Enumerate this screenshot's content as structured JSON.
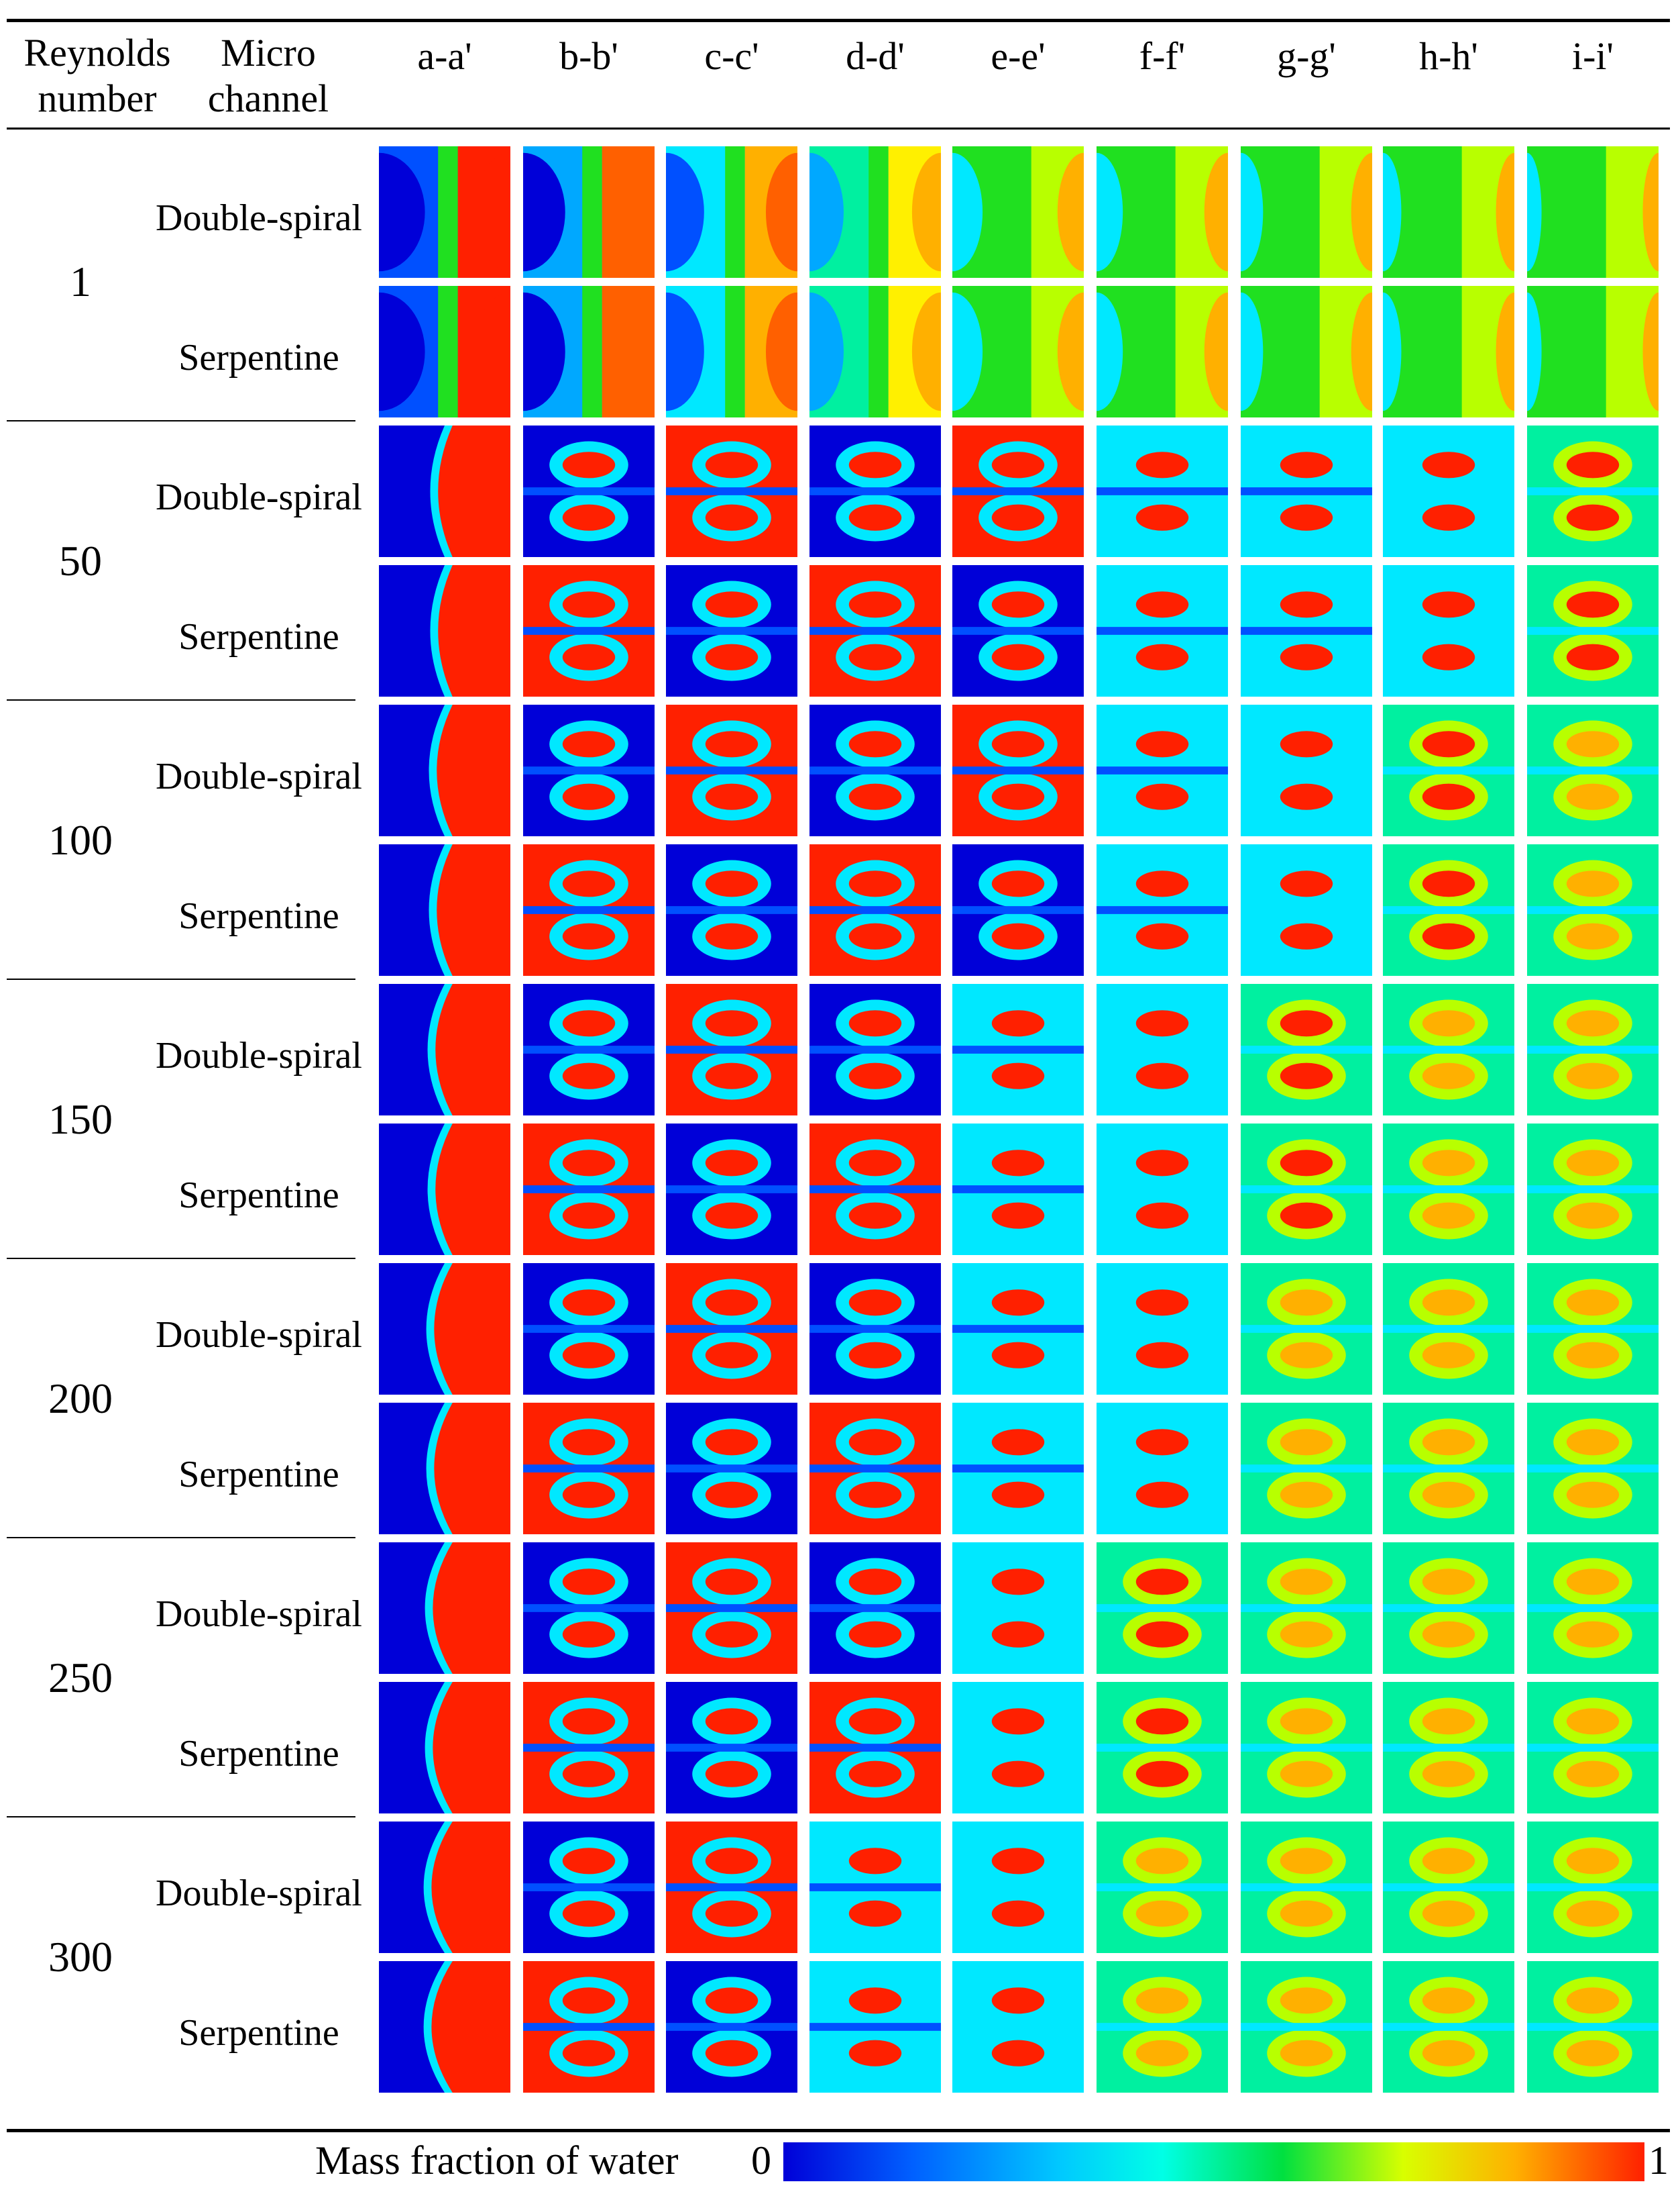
{
  "header": {
    "reynolds_label": "Reynolds number",
    "channel_label": "Micro channel",
    "sections": [
      "a-a'",
      "b-b'",
      "c-c'",
      "d-d'",
      "e-e'",
      "f-f'",
      "g-g'",
      "h-h'",
      "i-i'"
    ]
  },
  "rows": [
    {
      "re": "1",
      "channels": [
        "Double-spiral",
        "Serpentine"
      ]
    },
    {
      "re": "50",
      "channels": [
        "Double-spiral",
        "Serpentine"
      ]
    },
    {
      "re": "100",
      "channels": [
        "Double-spiral",
        "Serpentine"
      ]
    },
    {
      "re": "150",
      "channels": [
        "Double-spiral",
        "Serpentine"
      ]
    },
    {
      "re": "200",
      "channels": [
        "Double-spiral",
        "Serpentine"
      ]
    },
    {
      "re": "250",
      "channels": [
        "Double-spiral",
        "Serpentine"
      ]
    },
    {
      "re": "300",
      "channels": [
        "Double-spiral",
        "Serpentine"
      ]
    }
  ],
  "colorbar": {
    "label": "Mass fraction of water",
    "min": "0",
    "max": "1",
    "colors": {
      "low": "#0000d8",
      "mid": "#00ffe6",
      "high": "#ff2000"
    }
  }
}
